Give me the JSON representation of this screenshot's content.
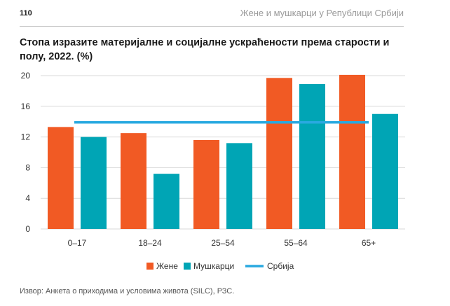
{
  "header": {
    "page_number": "110",
    "running_title": "Жене и мушкарци у Републици Србији"
  },
  "source_note": "Извор: Анкета о приходима и условима живота (SILC), РЗС.",
  "chart_data": {
    "type": "bar",
    "title": "Стопа изразите материјалне и социјалне ускраћености према старости и полу, 2022. (%)",
    "categories": [
      "0–17",
      "18–24",
      "25–54",
      "55–64",
      "65+"
    ],
    "series": [
      {
        "name": "Жене",
        "color": "#f15a24",
        "values": [
          13.3,
          12.5,
          11.6,
          19.7,
          20.1
        ]
      },
      {
        "name": "Мушкарци",
        "color": "#00a5b5",
        "values": [
          12.0,
          7.2,
          11.2,
          18.9,
          15.0
        ]
      }
    ],
    "reference_line": {
      "name": "Србија",
      "color": "#29a9e0",
      "value": 13.9
    },
    "ylim": [
      0,
      20
    ],
    "yticks": [
      "0",
      "4",
      "8",
      "12",
      "16",
      "20"
    ],
    "grid": true,
    "legend_position": "bottom"
  }
}
